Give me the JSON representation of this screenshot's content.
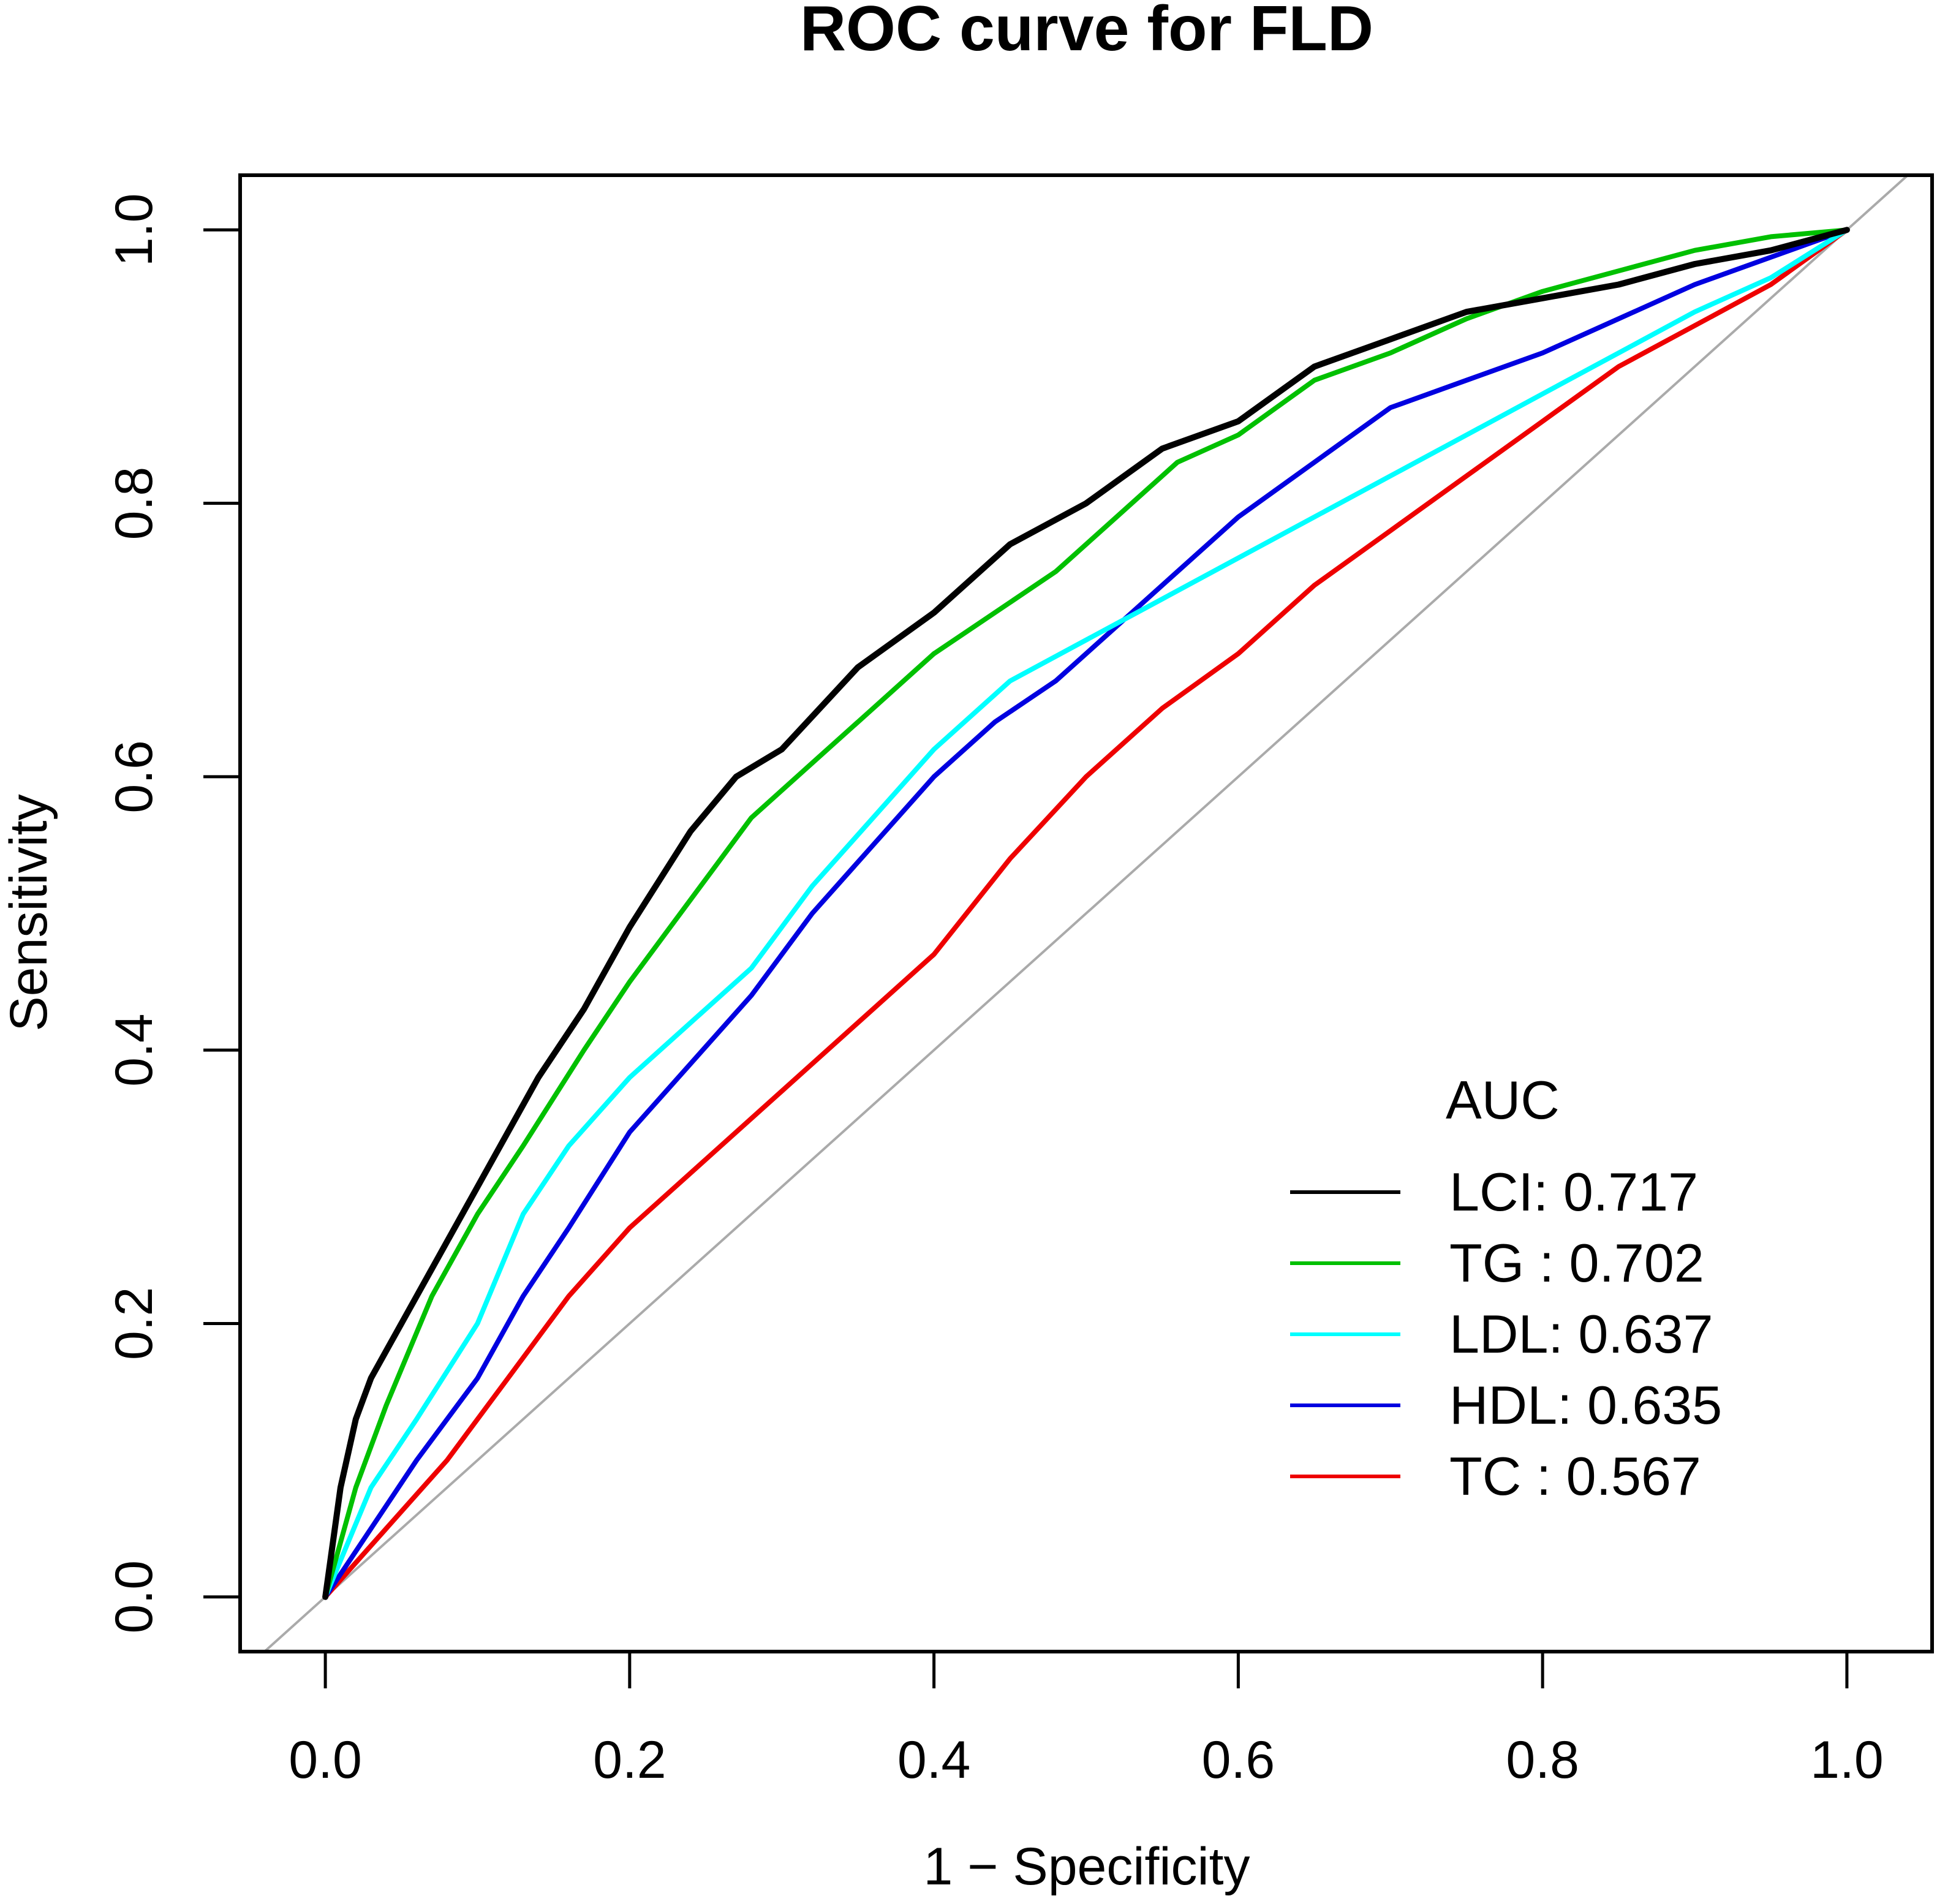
{
  "chart_data": {
    "type": "line",
    "title": "ROC curve for FLD",
    "xlabel": "1 − Specificity",
    "ylabel": "Sensitivity",
    "xlim": [
      -0.056,
      1.056
    ],
    "ylim": [
      -0.04,
      1.04
    ],
    "xticks": [
      0.0,
      0.2,
      0.4,
      0.6,
      0.8,
      1.0
    ],
    "yticks": [
      0.0,
      0.2,
      0.4,
      0.6,
      0.8,
      1.0
    ],
    "xtick_labels": [
      "0.0",
      "0.2",
      "0.4",
      "0.6",
      "0.8",
      "1.0"
    ],
    "ytick_labels": [
      "0.0",
      "0.2",
      "0.4",
      "0.6",
      "0.8",
      "1.0"
    ],
    "grid": false,
    "legend": {
      "title": "AUC",
      "position": "bottom-right",
      "entries": [
        "LCI: 0.717",
        "TG : 0.702",
        "LDL: 0.637",
        "HDL: 0.635",
        "TC : 0.567"
      ]
    },
    "reference_line": {
      "name": "diagonal",
      "color": "#aaaaaa",
      "x": [
        -0.1,
        1.1
      ],
      "y": [
        -0.1,
        1.1
      ]
    },
    "series": [
      {
        "name": "LCI",
        "auc": 0.717,
        "color": "#000000",
        "x": [
          0,
          0.01,
          0.02,
          0.03,
          0.05,
          0.08,
          0.1,
          0.14,
          0.17,
          0.2,
          0.24,
          0.27,
          0.3,
          0.35,
          0.4,
          0.45,
          0.5,
          0.55,
          0.6,
          0.65,
          0.7,
          0.75,
          0.8,
          0.85,
          0.9,
          0.95,
          1.0
        ],
        "y": [
          0,
          0.08,
          0.13,
          0.16,
          0.2,
          0.26,
          0.3,
          0.38,
          0.43,
          0.49,
          0.56,
          0.6,
          0.62,
          0.68,
          0.72,
          0.77,
          0.8,
          0.84,
          0.86,
          0.9,
          0.92,
          0.94,
          0.95,
          0.96,
          0.975,
          0.985,
          1.0
        ]
      },
      {
        "name": "TG",
        "auc": 0.702,
        "color": "#00c000",
        "x": [
          0,
          0.02,
          0.04,
          0.07,
          0.1,
          0.13,
          0.17,
          0.2,
          0.24,
          0.28,
          0.32,
          0.36,
          0.4,
          0.44,
          0.48,
          0.52,
          0.56,
          0.6,
          0.65,
          0.7,
          0.75,
          0.8,
          0.85,
          0.9,
          0.95,
          1.0
        ],
        "y": [
          0,
          0.08,
          0.14,
          0.22,
          0.28,
          0.33,
          0.4,
          0.45,
          0.51,
          0.57,
          0.61,
          0.65,
          0.69,
          0.72,
          0.75,
          0.79,
          0.83,
          0.85,
          0.89,
          0.91,
          0.935,
          0.955,
          0.97,
          0.985,
          0.995,
          1.0
        ]
      },
      {
        "name": "LDL",
        "auc": 0.637,
        "color": "#00ffff",
        "x": [
          0,
          0.03,
          0.06,
          0.1,
          0.13,
          0.16,
          0.2,
          0.24,
          0.28,
          0.32,
          0.36,
          0.4,
          0.45,
          0.5,
          0.55,
          0.6,
          0.65,
          0.7,
          0.75,
          0.8,
          0.85,
          0.9,
          0.95,
          1.0
        ],
        "y": [
          0,
          0.08,
          0.13,
          0.2,
          0.28,
          0.33,
          0.38,
          0.42,
          0.46,
          0.52,
          0.57,
          0.62,
          0.67,
          0.7,
          0.73,
          0.76,
          0.79,
          0.82,
          0.85,
          0.88,
          0.91,
          0.94,
          0.965,
          1.0
        ]
      },
      {
        "name": "HDL",
        "auc": 0.635,
        "color": "#0000e0",
        "x": [
          0,
          0.03,
          0.06,
          0.1,
          0.13,
          0.16,
          0.2,
          0.24,
          0.28,
          0.32,
          0.36,
          0.4,
          0.44,
          0.48,
          0.52,
          0.56,
          0.6,
          0.65,
          0.7,
          0.75,
          0.8,
          0.85,
          0.9,
          0.95,
          1.0
        ],
        "y": [
          0,
          0.05,
          0.1,
          0.16,
          0.22,
          0.27,
          0.34,
          0.39,
          0.44,
          0.5,
          0.55,
          0.6,
          0.64,
          0.67,
          0.71,
          0.75,
          0.79,
          0.83,
          0.87,
          0.89,
          0.91,
          0.935,
          0.96,
          0.98,
          1.0
        ]
      },
      {
        "name": "TC",
        "auc": 0.567,
        "color": "#ee0000",
        "x": [
          0,
          0.04,
          0.08,
          0.12,
          0.16,
          0.2,
          0.25,
          0.3,
          0.35,
          0.4,
          0.45,
          0.5,
          0.55,
          0.6,
          0.65,
          0.7,
          0.75,
          0.8,
          0.85,
          0.9,
          0.95,
          1.0
        ],
        "y": [
          0,
          0.05,
          0.1,
          0.16,
          0.22,
          0.27,
          0.32,
          0.37,
          0.42,
          0.47,
          0.54,
          0.6,
          0.65,
          0.69,
          0.74,
          0.78,
          0.82,
          0.86,
          0.9,
          0.93,
          0.96,
          1.0
        ]
      }
    ]
  }
}
